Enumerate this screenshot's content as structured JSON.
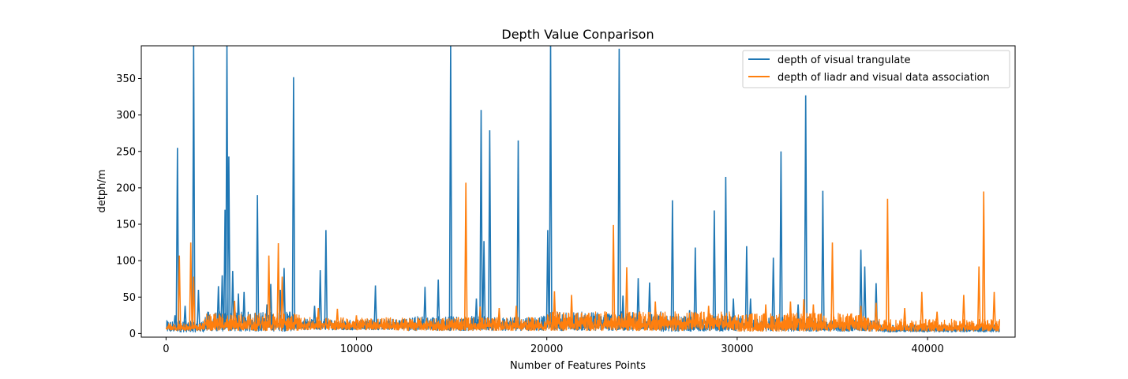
{
  "chart_data": {
    "type": "line",
    "title": "Depth Value Conparison",
    "xlabel": "Number of Features Points",
    "ylabel": "detph/m",
    "xlim": [
      -1300,
      44600
    ],
    "ylim": [
      -5,
      395
    ],
    "x_ticks": [
      0,
      10000,
      20000,
      30000,
      40000
    ],
    "y_ticks": [
      0,
      50,
      100,
      150,
      200,
      250,
      300,
      350
    ],
    "grid": false,
    "legend_position": "top-right",
    "series": [
      {
        "name": "depth of visual trangulate",
        "color": "#1f77b4",
        "baseline": {
          "segments": [
            {
              "x": [
                0,
                2000
              ],
              "low": 2,
              "high": 18
            },
            {
              "x": [
                2000,
                6800
              ],
              "low": 3,
              "high": 30
            },
            {
              "x": [
                6800,
                12500
              ],
              "low": 5,
              "high": 20
            },
            {
              "x": [
                12500,
                20000
              ],
              "low": 4,
              "high": 24
            },
            {
              "x": [
                20000,
                26000
              ],
              "low": 4,
              "high": 30
            },
            {
              "x": [
                26000,
                34000
              ],
              "low": 3,
              "high": 24
            },
            {
              "x": [
                34000,
                37500
              ],
              "low": 3,
              "high": 18
            },
            {
              "x": [
                37500,
                43800
              ],
              "low": 2,
              "high": 12
            }
          ]
        },
        "spikes": [
          [
            470,
            25
          ],
          [
            600,
            255
          ],
          [
            1000,
            38
          ],
          [
            1450,
            400
          ],
          [
            1700,
            60
          ],
          [
            2750,
            65
          ],
          [
            2950,
            80
          ],
          [
            3100,
            170
          ],
          [
            3200,
            400
          ],
          [
            3300,
            243
          ],
          [
            3500,
            86
          ],
          [
            3800,
            55
          ],
          [
            4100,
            57
          ],
          [
            4800,
            190
          ],
          [
            5300,
            40
          ],
          [
            5500,
            68
          ],
          [
            6000,
            60
          ],
          [
            6200,
            90
          ],
          [
            6500,
            30
          ],
          [
            6700,
            352
          ],
          [
            7800,
            38
          ],
          [
            8100,
            87
          ],
          [
            8400,
            142
          ],
          [
            11000,
            66
          ],
          [
            13600,
            64
          ],
          [
            14300,
            74
          ],
          [
            14950,
            400
          ],
          [
            16300,
            48
          ],
          [
            16550,
            307
          ],
          [
            16700,
            127
          ],
          [
            17000,
            279
          ],
          [
            18500,
            265
          ],
          [
            20050,
            142
          ],
          [
            20200,
            400
          ],
          [
            23800,
            391
          ],
          [
            24000,
            52
          ],
          [
            24800,
            76
          ],
          [
            25400,
            70
          ],
          [
            26600,
            183
          ],
          [
            27500,
            32
          ],
          [
            27800,
            118
          ],
          [
            28800,
            169
          ],
          [
            29400,
            215
          ],
          [
            29800,
            48
          ],
          [
            30500,
            120
          ],
          [
            30700,
            48
          ],
          [
            31900,
            104
          ],
          [
            32300,
            250
          ],
          [
            33200,
            40
          ],
          [
            33600,
            327
          ],
          [
            34500,
            196
          ],
          [
            36500,
            115
          ],
          [
            36700,
            92
          ],
          [
            37300,
            69
          ]
        ]
      },
      {
        "name": "depth of liadr and visual data association",
        "color": "#ff7f0e",
        "baseline": {
          "segments": [
            {
              "x": [
                0,
                2000
              ],
              "low": 4,
              "high": 14
            },
            {
              "x": [
                2000,
                7000
              ],
              "low": 4,
              "high": 28
            },
            {
              "x": [
                7000,
                12000
              ],
              "low": 5,
              "high": 22
            },
            {
              "x": [
                12000,
                20000
              ],
              "low": 4,
              "high": 22
            },
            {
              "x": [
                20000,
                30000
              ],
              "low": 4,
              "high": 30
            },
            {
              "x": [
                30000,
                37000
              ],
              "low": 3,
              "high": 28
            },
            {
              "x": [
                37000,
                43800
              ],
              "low": 3,
              "high": 20
            }
          ]
        },
        "spikes": [
          [
            700,
            107
          ],
          [
            1300,
            125
          ],
          [
            1450,
            78
          ],
          [
            3600,
            45
          ],
          [
            5400,
            107
          ],
          [
            5900,
            124
          ],
          [
            6100,
            78
          ],
          [
            8000,
            35
          ],
          [
            9000,
            34
          ],
          [
            10000,
            25
          ],
          [
            15750,
            207
          ],
          [
            16500,
            37
          ],
          [
            17500,
            35
          ],
          [
            18400,
            38
          ],
          [
            20400,
            58
          ],
          [
            21300,
            53
          ],
          [
            23500,
            149
          ],
          [
            24200,
            91
          ],
          [
            25700,
            44
          ],
          [
            28500,
            38
          ],
          [
            31500,
            40
          ],
          [
            32800,
            44
          ],
          [
            33500,
            47
          ],
          [
            34000,
            40
          ],
          [
            35000,
            125
          ],
          [
            36500,
            38
          ],
          [
            37300,
            42
          ],
          [
            37900,
            185
          ],
          [
            38800,
            35
          ],
          [
            39700,
            57
          ],
          [
            40500,
            30
          ],
          [
            41900,
            53
          ],
          [
            42700,
            92
          ],
          [
            42950,
            195
          ],
          [
            43500,
            57
          ]
        ]
      }
    ]
  }
}
